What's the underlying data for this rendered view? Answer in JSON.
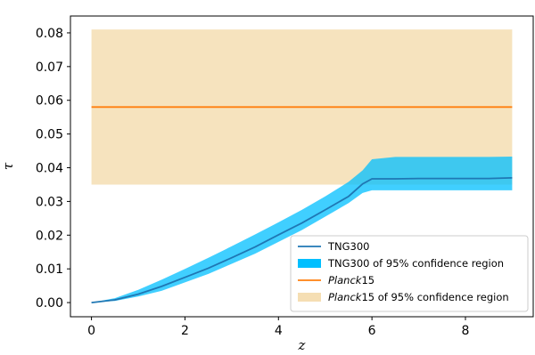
{
  "chart_data": {
    "type": "line",
    "xlabel": "z",
    "ylabel": "τ",
    "xlim": [
      -0.45,
      9.45
    ],
    "ylim": [
      -0.0042,
      0.085
    ],
    "xticks": [
      0,
      2,
      4,
      6,
      8
    ],
    "yticks": [
      0.0,
      0.01,
      0.02,
      0.03,
      0.04,
      0.05,
      0.06,
      0.07,
      0.08
    ],
    "xtick_labels": [
      "0",
      "2",
      "4",
      "6",
      "8"
    ],
    "ytick_labels": [
      "0.00",
      "0.01",
      "0.02",
      "0.03",
      "0.04",
      "0.05",
      "0.06",
      "0.07",
      "0.08"
    ],
    "grid": false,
    "legend_position": "lower-right",
    "series": [
      {
        "name": "TNG300",
        "kind": "line",
        "color": "#1f77b4",
        "x": [
          0,
          0.5,
          1,
          1.5,
          2,
          2.5,
          3,
          3.5,
          4,
          4.5,
          5,
          5.5,
          5.8,
          6,
          6.5,
          7,
          7.5,
          8,
          8.5,
          9
        ],
        "y": [
          0,
          0.0008,
          0.0025,
          0.0048,
          0.0075,
          0.0102,
          0.0133,
          0.0165,
          0.0201,
          0.0236,
          0.0275,
          0.0315,
          0.0352,
          0.0367,
          0.0367,
          0.0368,
          0.0368,
          0.0368,
          0.0368,
          0.037
        ]
      },
      {
        "name": "TNG300 of 95% confidence region",
        "kind": "band",
        "color": "#00bfff",
        "x": [
          0,
          0.5,
          1,
          1.5,
          2,
          2.5,
          3,
          3.5,
          4,
          4.5,
          5,
          5.5,
          5.8,
          6,
          6.5,
          7,
          7.5,
          8,
          8.5,
          9
        ],
        "lower": [
          0,
          0.0005,
          0.0018,
          0.0035,
          0.006,
          0.0085,
          0.0115,
          0.0145,
          0.018,
          0.0215,
          0.0255,
          0.0295,
          0.0325,
          0.0333,
          0.0333,
          0.0333,
          0.0333,
          0.0333,
          0.0333,
          0.0333
        ],
        "upper": [
          0,
          0.0013,
          0.0038,
          0.0068,
          0.01,
          0.0133,
          0.0167,
          0.0202,
          0.0238,
          0.0275,
          0.0315,
          0.0358,
          0.0392,
          0.0425,
          0.0432,
          0.0432,
          0.0432,
          0.0432,
          0.0432,
          0.0433
        ]
      },
      {
        "name": "Planck15",
        "kind": "line",
        "color": "#ff7f0e",
        "x": [
          0,
          9
        ],
        "y": [
          0.058,
          0.058
        ]
      },
      {
        "name": "Planck15 of 95% confidence region",
        "kind": "band",
        "color": "#f5deb3",
        "x": [
          0,
          9
        ],
        "lower": [
          0.035,
          0.035
        ],
        "upper": [
          0.081,
          0.081
        ]
      }
    ],
    "legend": [
      {
        "italic": "",
        "text": "TNG300",
        "kind": "line",
        "color": "#1f77b4"
      },
      {
        "italic": "",
        "text": "TNG300 of 95% confidence region",
        "kind": "patch",
        "color": "#00bfff"
      },
      {
        "italic": "Planck",
        "text": "15",
        "kind": "line",
        "color": "#ff7f0e"
      },
      {
        "italic": "Planck",
        "text": "15 of 95% confidence region",
        "kind": "patch",
        "color": "#f5deb3"
      }
    ]
  }
}
